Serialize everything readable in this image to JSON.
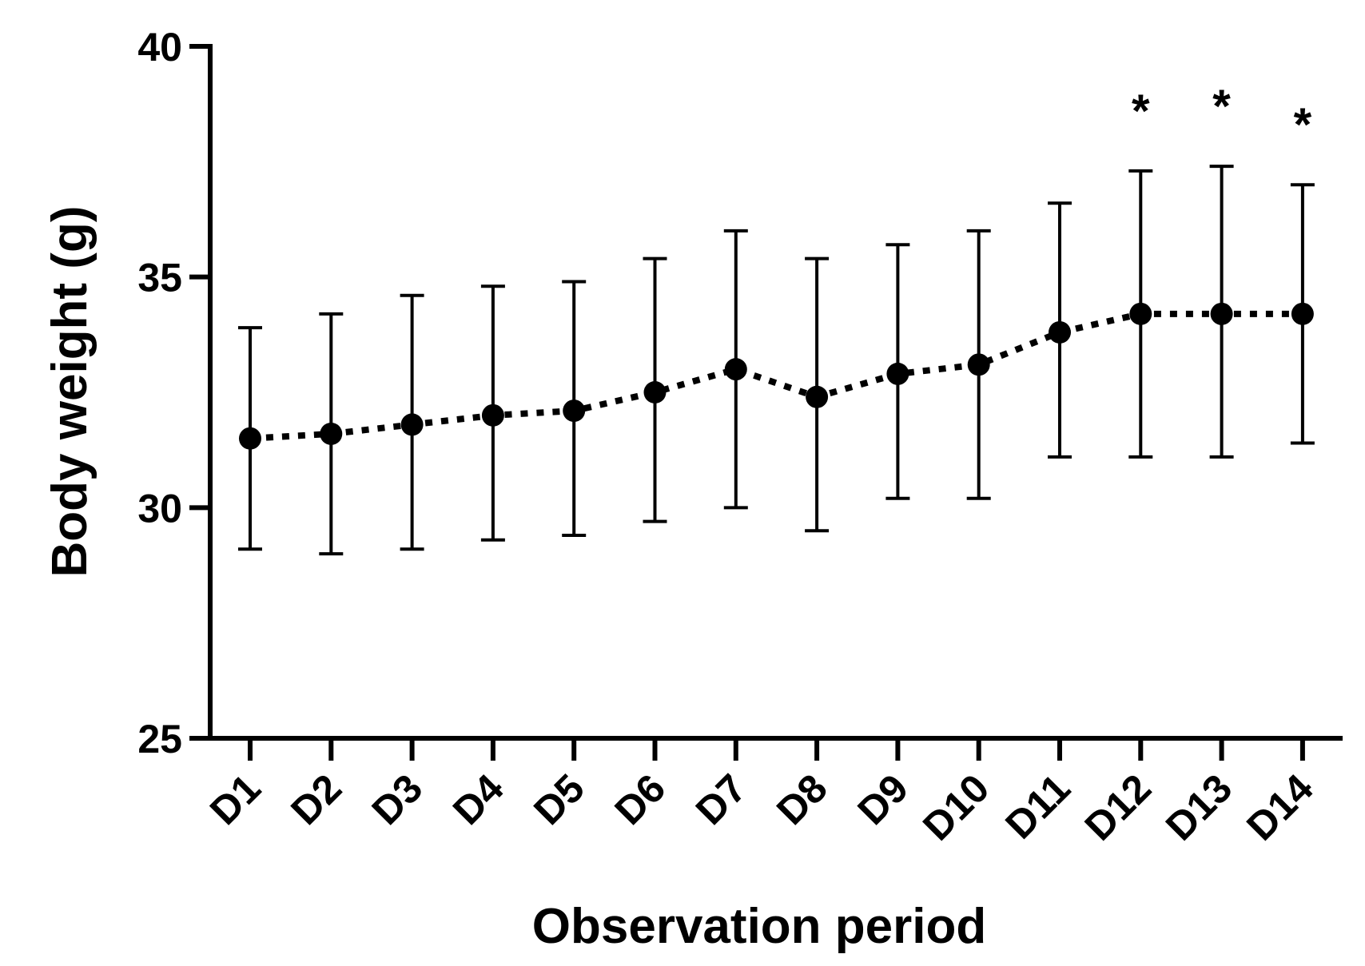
{
  "chart_data": {
    "type": "line",
    "title": "",
    "xlabel": "Observation period",
    "ylabel": "Body weight (g)",
    "ylim": [
      25,
      40
    ],
    "yticks": [
      "25",
      "30",
      "35",
      "40"
    ],
    "categories": [
      "D1",
      "D2",
      "D3",
      "D4",
      "D5",
      "D6",
      "D7",
      "D8",
      "D9",
      "D10",
      "D11",
      "D12",
      "D13",
      "D14"
    ],
    "series": [
      {
        "values": [
          31.5,
          31.6,
          31.8,
          32.0,
          32.1,
          32.5,
          33.0,
          32.4,
          32.9,
          33.1,
          33.8,
          34.2,
          34.2,
          34.2
        ],
        "upper": [
          33.9,
          34.2,
          34.6,
          34.8,
          34.9,
          35.4,
          36.0,
          35.4,
          35.7,
          36.0,
          36.6,
          37.3,
          37.4,
          37.0
        ],
        "lower": [
          29.1,
          29.0,
          29.1,
          29.3,
          29.4,
          29.7,
          30.0,
          29.5,
          30.2,
          30.2,
          31.1,
          31.1,
          31.1,
          31.4
        ]
      }
    ],
    "annotations": [
      {
        "category": "D12",
        "text": "*"
      },
      {
        "category": "D13",
        "text": "*"
      },
      {
        "category": "D14",
        "text": "*"
      }
    ],
    "line_style": "dotted",
    "grid": false,
    "colors": {
      "line": "#000000",
      "marker": "#000000"
    }
  }
}
